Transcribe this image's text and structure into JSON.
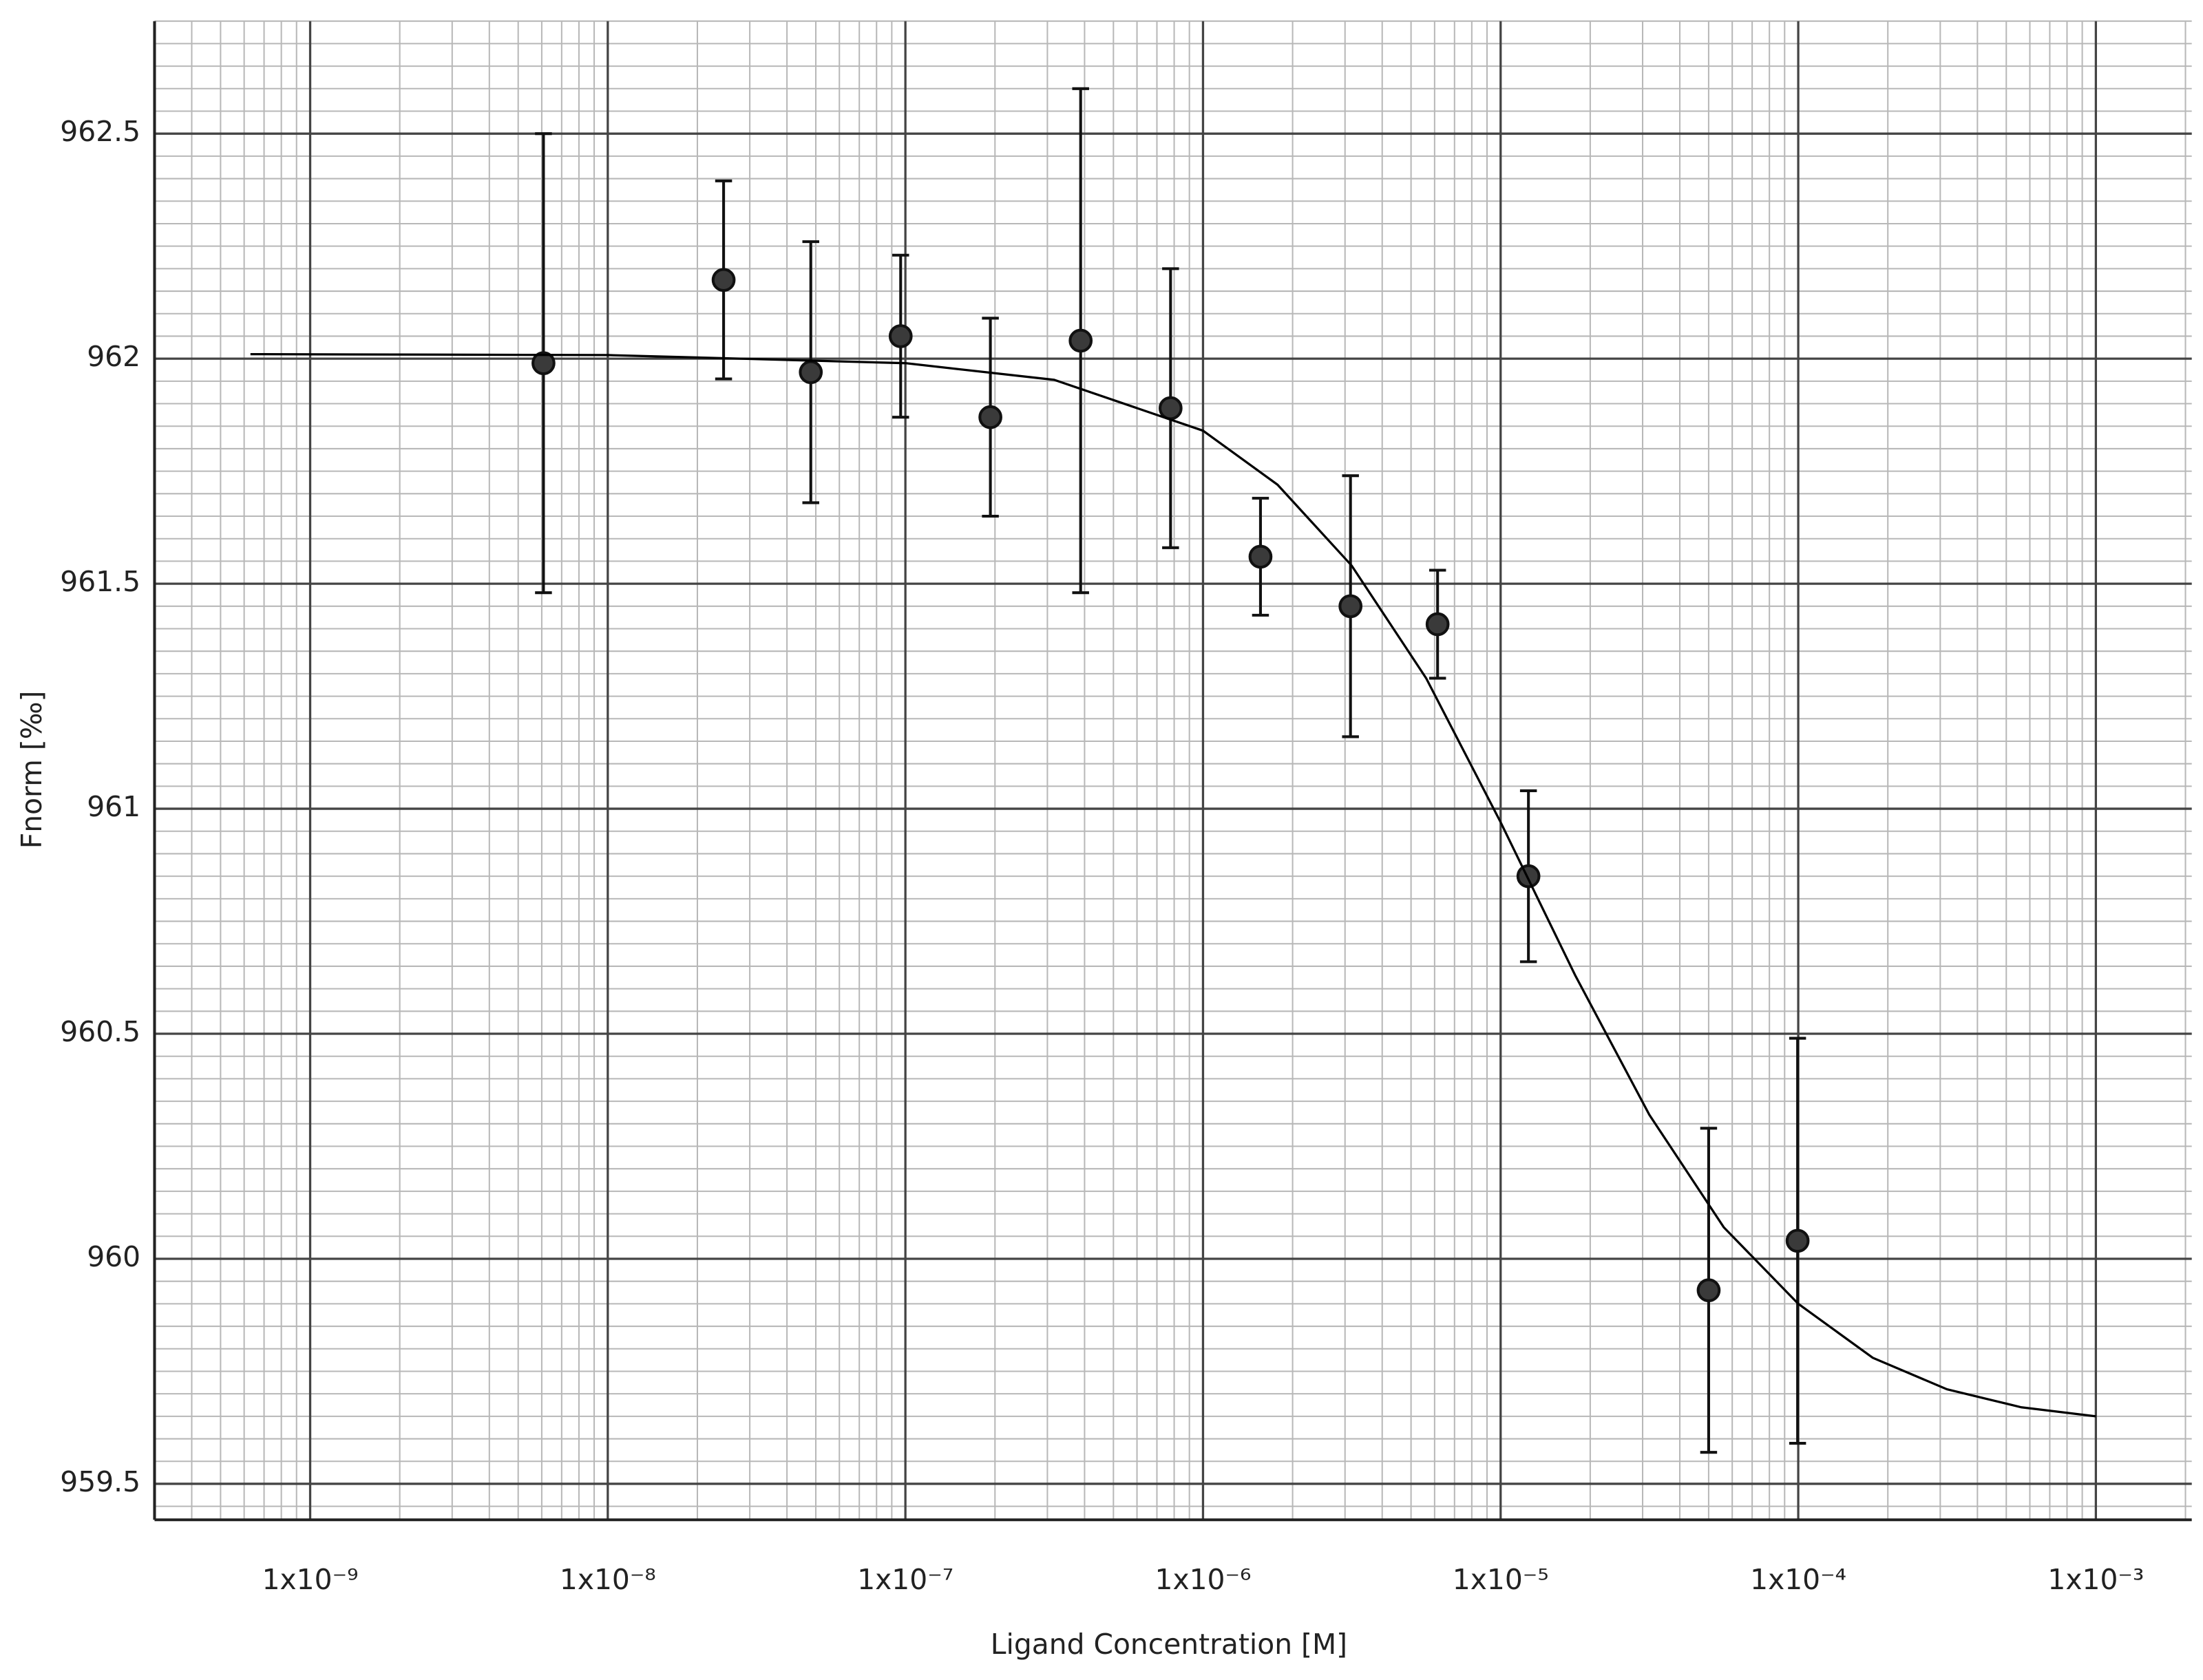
{
  "chart_data": {
    "type": "scatter",
    "x_label": "Ligand Concentration [M]",
    "y_label": "Fnorm [‰]",
    "xscale": "log",
    "xlim": [
      3e-10,
      0.0021
    ],
    "ylim": [
      959.42,
      962.75
    ],
    "xticks": [
      {
        "value": 1e-09,
        "label": "1x10⁻⁹"
      },
      {
        "value": 1e-08,
        "label": "1x10⁻⁸"
      },
      {
        "value": 1e-07,
        "label": "1x10⁻⁷"
      },
      {
        "value": 1e-06,
        "label": "1x10⁻⁶"
      },
      {
        "value": 1e-05,
        "label": "1x10⁻⁵"
      },
      {
        "value": 0.0001,
        "label": "1x10⁻⁴"
      },
      {
        "value": 0.001,
        "label": "1x10⁻³"
      }
    ],
    "yticks": [
      959.5,
      960,
      960.5,
      961,
      961.5,
      962,
      962.5
    ],
    "grid": true,
    "minor_grid": true,
    "series": [
      {
        "mode": "markers",
        "color": "#3a3a3a",
        "x": [
          6.08e-09,
          2.45e-08,
          4.81e-08,
          9.64e-08,
          1.93e-07,
          3.88e-07,
          7.78e-07,
          1.56e-06,
          3.13e-06,
          6.14e-06,
          1.24e-05,
          5e-05,
          9.95e-05
        ],
        "values": [
          961.99,
          962.175,
          961.97,
          962.05,
          961.87,
          962.04,
          961.89,
          961.56,
          961.45,
          961.41,
          960.85,
          959.93,
          960.04
        ],
        "errors": [
          0.51,
          0.22,
          0.29,
          0.18,
          0.22,
          0.56,
          0.31,
          0.13,
          0.29,
          0.12,
          0.19,
          0.36,
          0.45
        ]
      },
      {
        "mode": "line",
        "color": "#000000",
        "x": [
          6.3e-10,
          1e-08,
          1e-07,
          3.16e-07,
          1e-06,
          1.78e-06,
          3.16e-06,
          5.62e-06,
          1e-05,
          1.78e-05,
          3.16e-05,
          5.62e-05,
          0.0001,
          0.000178,
          0.000316,
          0.000562,
          0.001
        ],
        "values": [
          962.01,
          962.008,
          961.99,
          961.953,
          961.84,
          961.72,
          961.54,
          961.29,
          960.97,
          960.63,
          960.32,
          960.07,
          959.9,
          959.78,
          959.71,
          959.67,
          959.65
        ]
      }
    ]
  }
}
